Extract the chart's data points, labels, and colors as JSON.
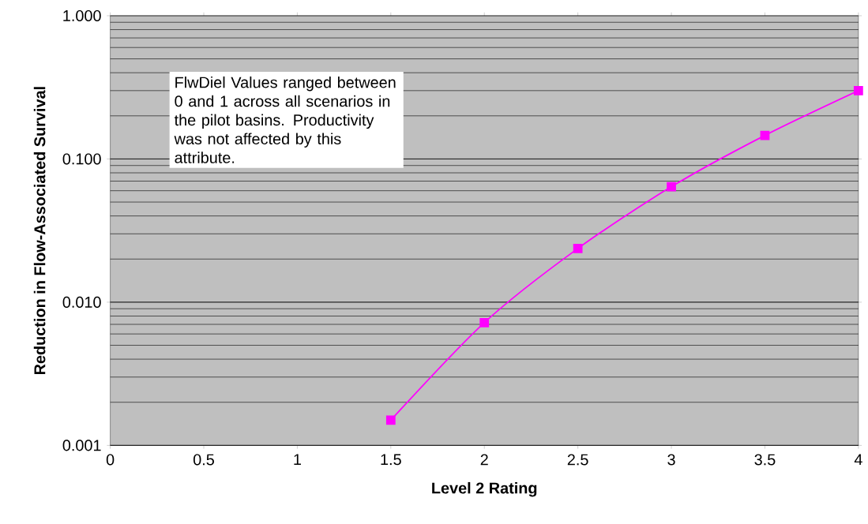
{
  "chart_data": {
    "type": "line",
    "xlabel": "Level 2 Rating",
    "ylabel": "Reduction in Flow-Associated Survival",
    "x": [
      1.5,
      2,
      2.5,
      3,
      3.5,
      4
    ],
    "series": [
      {
        "color": "#ff00ff",
        "values": [
          0.0015,
          0.0072,
          0.0237,
          0.064,
          0.146,
          0.3
        ]
      }
    ],
    "xlim": [
      0,
      4
    ],
    "xticks": [
      0,
      0.5,
      1,
      1.5,
      2,
      2.5,
      3,
      3.5,
      4
    ],
    "ylim": [
      0.001,
      1
    ],
    "yticks": [
      {
        "value": 0.001,
        "label": "0.001"
      },
      {
        "value": 0.01,
        "label": "0.010"
      },
      {
        "value": 0.1,
        "label": "0.100"
      },
      {
        "value": 1,
        "label": "1.000"
      }
    ],
    "log": "y",
    "grid": "y",
    "marker": "square",
    "line_style": "solid",
    "annotations": [
      "FlwDiel Values ranged between 0 and 1 across all scenarios in the pilot basins. Productivity was not affected by this attribute."
    ]
  }
}
